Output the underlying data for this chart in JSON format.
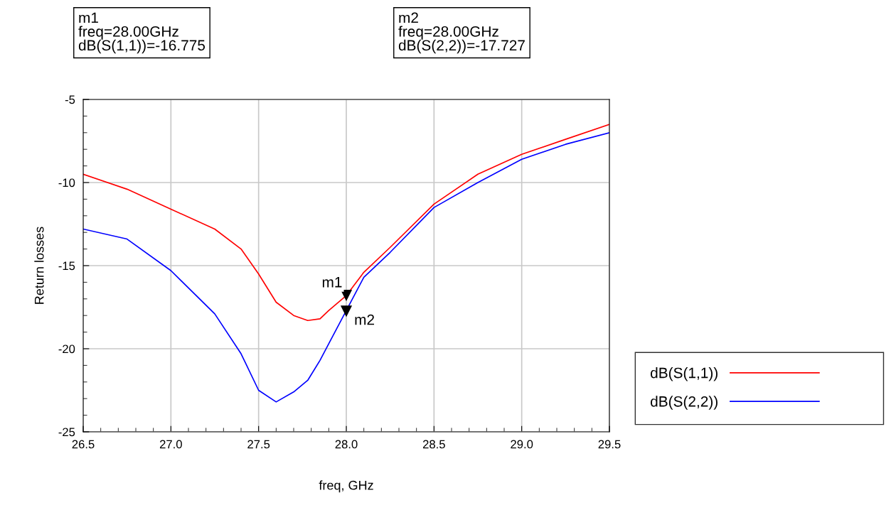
{
  "chart_data": {
    "type": "line",
    "xlabel": "freq, GHz",
    "ylabel": "Return losses",
    "x": [
      26.5,
      26.75,
      27.0,
      27.25,
      27.4,
      27.5,
      27.6,
      27.7,
      27.78,
      27.85,
      27.9,
      28.0,
      28.1,
      28.25,
      28.5,
      28.75,
      29.0,
      29.25,
      29.5
    ],
    "series": [
      {
        "name": "dB(S(1,1))",
        "color": "#ff0000",
        "values": [
          -9.5,
          -10.4,
          -11.6,
          -12.8,
          -14.0,
          -15.5,
          -17.2,
          -18.0,
          -18.3,
          -18.2,
          -17.7,
          -16.8,
          -15.4,
          -13.9,
          -11.3,
          -9.5,
          -8.3,
          -7.4,
          -6.5
        ]
      },
      {
        "name": "dB(S(2,2))",
        "color": "#0000ff",
        "values": [
          -12.8,
          -13.4,
          -15.3,
          -17.9,
          -20.3,
          -22.5,
          -23.2,
          -22.6,
          -21.9,
          -20.7,
          -19.7,
          -17.7,
          -15.7,
          -14.2,
          -11.5,
          -10.0,
          -8.6,
          -7.7,
          -7.0
        ]
      }
    ],
    "xlim": [
      26.5,
      29.5
    ],
    "xticks": [
      {
        "value": 26.5,
        "label": "26.5"
      },
      {
        "value": 27.0,
        "label": "27.0"
      },
      {
        "value": 27.5,
        "label": "27.5"
      },
      {
        "value": 28.0,
        "label": "28.0"
      },
      {
        "value": 28.5,
        "label": "28.5"
      },
      {
        "value": 29.0,
        "label": "29.0"
      },
      {
        "value": 29.5,
        "label": "29.5"
      }
    ],
    "ylim": [
      -25,
      -5
    ],
    "yticks": [
      -25,
      -20,
      -15,
      -10,
      -5
    ],
    "grid": true,
    "legend": "right",
    "marker": "none",
    "line_style": "solid",
    "annotations": [
      "m1\nfreq=28.00GHz\ndB(S(1,1))=-16.775",
      "m2\nfreq=28.00GHz\ndB(S(2,2))=-17.727",
      {
        "text": "m1",
        "x": 28.0,
        "y": -16.775
      },
      {
        "text": "m2",
        "x": 28.0,
        "y": -17.727
      }
    ]
  }
}
